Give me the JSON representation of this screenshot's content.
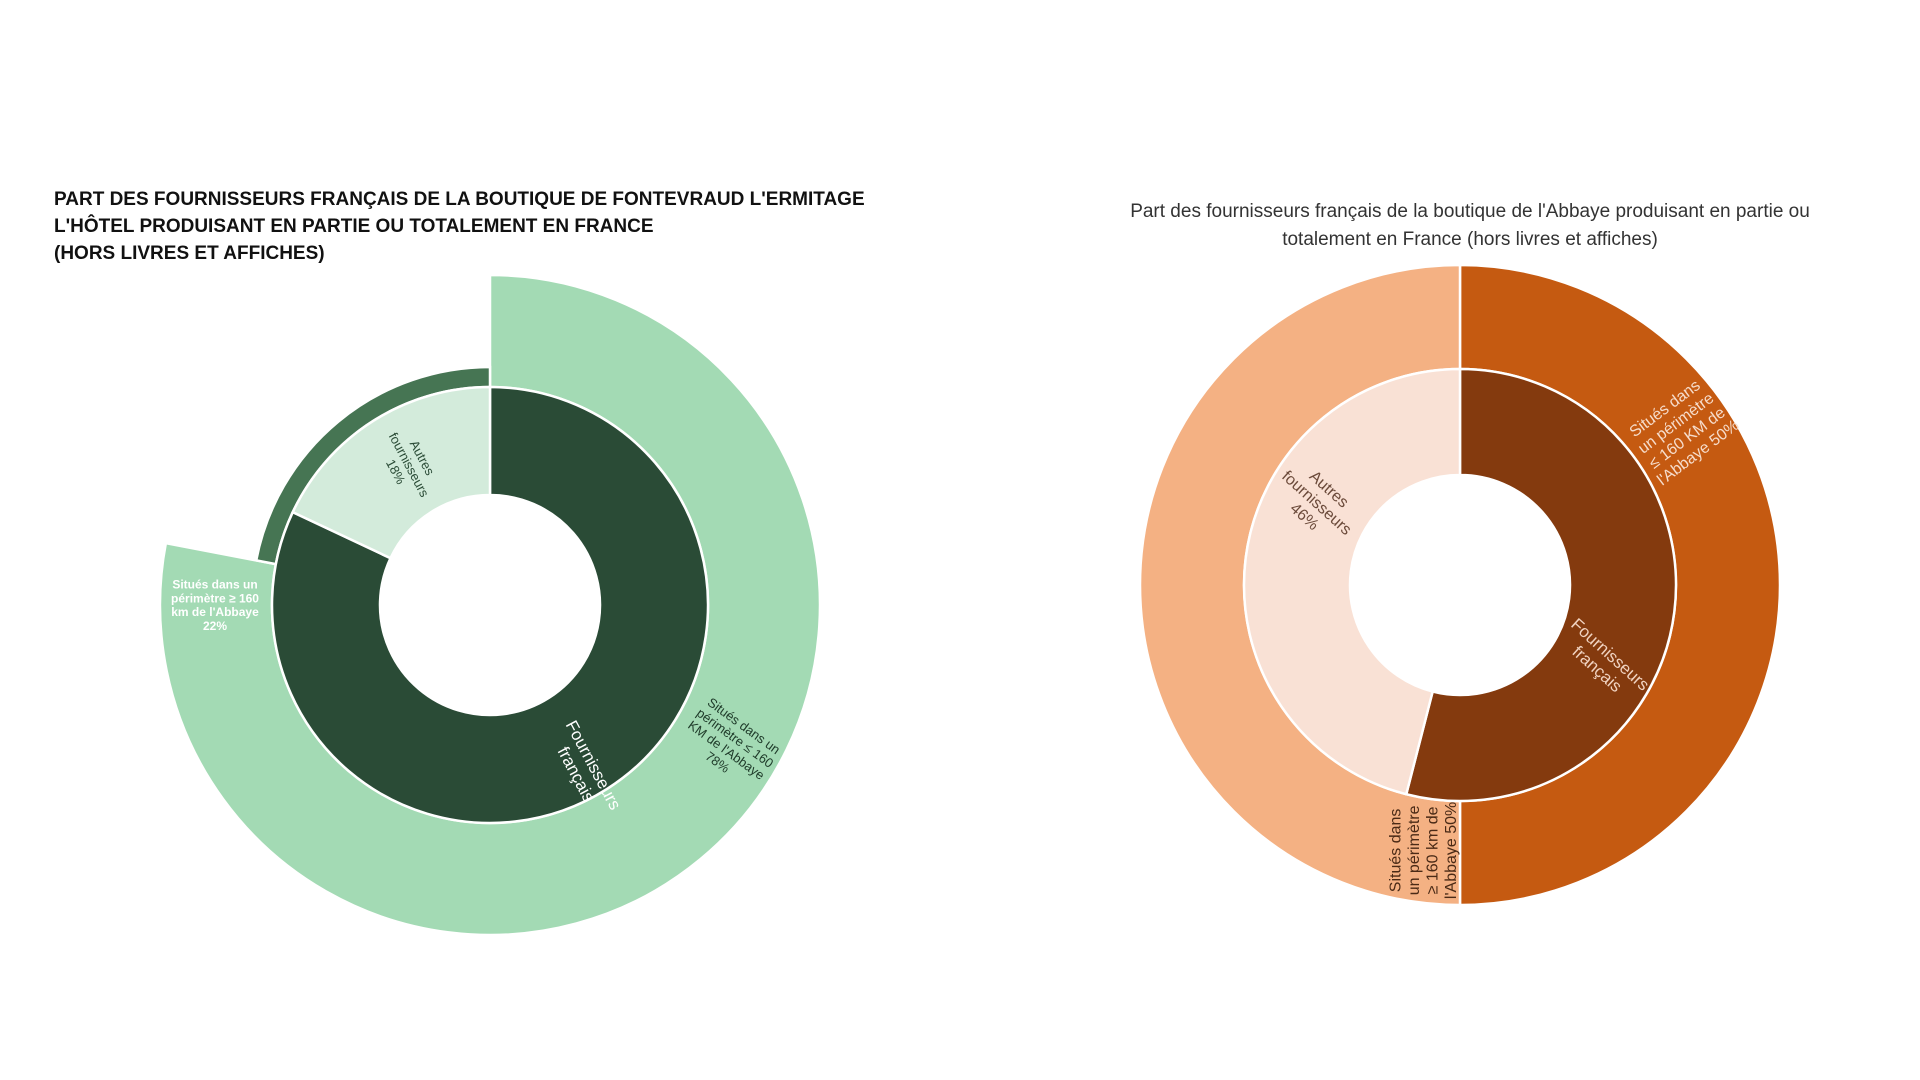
{
  "chart_data": [
    {
      "type": "sunburst",
      "title_lines": [
        "PART DES FOURNISSEURS FRANÇAIS DE LA BOUTIQUE DE FONTEVRAUD L'ERMITAGE",
        "L'HÔTEL PRODUISANT EN PARTIE OU TOTALEMENT EN FRANCE",
        "(HORS LIVRES ET AFFICHES)"
      ],
      "inner_ring": [
        {
          "label_lines": [
            "Fournisseurs",
            "français"
          ],
          "value": 82,
          "color": "#2a4b36",
          "text_color": "#ffffff"
        },
        {
          "label_lines": [
            "Autres",
            "fournisseurs",
            "18%"
          ],
          "value": 18,
          "color": "#d3ebdb",
          "text_color": "#2a4b36"
        }
      ],
      "outer_ring": [
        {
          "label_lines": [
            "Situés dans un",
            "périmètre ≤ 160",
            "KM de l'Abbaye",
            "78%"
          ],
          "value": 78,
          "color": "#a3dab4",
          "text_color": "#1e3a29"
        },
        {
          "label_lines": [
            "Situés  dans un",
            "périmètre ≥ 160",
            "km de l'Abbaye",
            "22%"
          ],
          "value": 22,
          "color": "#467553",
          "text_color": "#ffffff"
        }
      ]
    },
    {
      "type": "sunburst",
      "title_lines": [
        "Part des fournisseurs français de la boutique de l'Abbaye produisant en partie ou",
        "totalement en France (hors livres et affiches)"
      ],
      "inner_ring": [
        {
          "label_lines": [
            "Fournisseurs",
            "français"
          ],
          "value": 54,
          "color": "#843a0e",
          "text_color": "#f0d2c0"
        },
        {
          "label_lines": [
            "Autres",
            "fournisseurs",
            "46%"
          ],
          "value": 46,
          "color": "#f9e1d5",
          "text_color": "#6b4a3a"
        }
      ],
      "outer_ring": [
        {
          "label_lines": [
            "Situés dans",
            "un périmètre",
            "≤ 160 KM de",
            "l'Abbaye 50%"
          ],
          "value": 50,
          "color": "#c55a11",
          "text_color": "#f6dccb"
        },
        {
          "label_lines": [
            "Situés  dans",
            "un périmètre",
            "≥ 160 km de",
            "l'Abbaye 50%"
          ],
          "value": 50,
          "color": "#f4b183",
          "text_color": "#4a2a16"
        }
      ]
    }
  ]
}
